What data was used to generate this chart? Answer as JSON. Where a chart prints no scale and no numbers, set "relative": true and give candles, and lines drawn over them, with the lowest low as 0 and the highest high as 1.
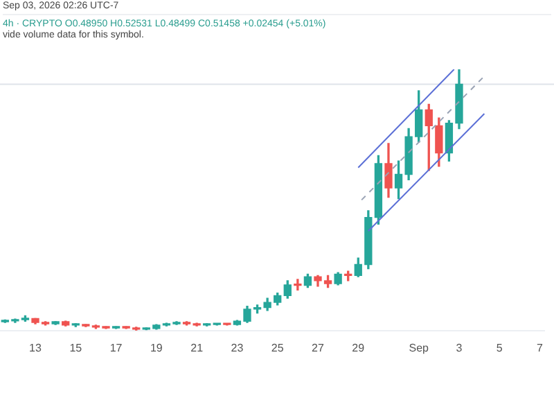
{
  "chart_data": {
    "type": "candlestick",
    "relative": true,
    "grid": false,
    "legend": false,
    "annotations": [
      "Sep 03, 2026 02:26 UTC-7",
      "4h · CRYPTO  O0.48950  H0.52531  L0.48499  C0.51458  +0.02454 (+5.01%)",
      "vide volume data for this symbol."
    ],
    "xlim": [
      "2026-08-11T06:00",
      "2026-09-07T05:00"
    ],
    "xticks": [
      {
        "value": "2026-08-13",
        "label": "13"
      },
      {
        "value": "2026-08-15",
        "label": "15"
      },
      {
        "value": "2026-08-17",
        "label": "17"
      },
      {
        "value": "2026-08-19",
        "label": "19"
      },
      {
        "value": "2026-08-21",
        "label": "21"
      },
      {
        "value": "2026-08-23",
        "label": "23"
      },
      {
        "value": "2026-08-25",
        "label": "25"
      },
      {
        "value": "2026-08-27",
        "label": "27"
      },
      {
        "value": "2026-08-29",
        "label": "29"
      },
      {
        "value": "2026-09-01",
        "label": "Sep"
      },
      {
        "value": "2026-09-03",
        "label": "3"
      },
      {
        "value": "2026-09-05",
        "label": "5"
      },
      {
        "value": "2026-09-07",
        "label": "7"
      }
    ],
    "x": [
      "2026-08-11T12:00",
      "2026-08-12T00:00",
      "2026-08-12T12:00",
      "2026-08-13T00:00",
      "2026-08-13T12:00",
      "2026-08-14T00:00",
      "2026-08-14T12:00",
      "2026-08-15T00:00",
      "2026-08-15T12:00",
      "2026-08-16T00:00",
      "2026-08-16T12:00",
      "2026-08-17T00:00",
      "2026-08-17T12:00",
      "2026-08-18T00:00",
      "2026-08-18T12:00",
      "2026-08-19T00:00",
      "2026-08-19T12:00",
      "2026-08-20T00:00",
      "2026-08-20T12:00",
      "2026-08-21T00:00",
      "2026-08-21T12:00",
      "2026-08-22T00:00",
      "2026-08-22T12:00",
      "2026-08-23T00:00",
      "2026-08-23T12:00",
      "2026-08-24T00:00",
      "2026-08-24T12:00",
      "2026-08-25T00:00",
      "2026-08-25T12:00",
      "2026-08-26T00:00",
      "2026-08-26T12:00",
      "2026-08-27T00:00",
      "2026-08-27T12:00",
      "2026-08-28T00:00",
      "2026-08-28T12:00",
      "2026-08-29T00:00",
      "2026-08-29T12:00",
      "2026-08-30T00:00",
      "2026-08-30T12:00",
      "2026-08-31T00:00",
      "2026-08-31T12:00",
      "2026-09-01T00:00",
      "2026-09-01T12:00",
      "2026-09-02T00:00",
      "2026-09-02T12:00",
      "2026-09-03T00:00"
    ],
    "ohlc": [
      [
        0.034,
        0.041,
        0.031,
        0.037
      ],
      [
        0.037,
        0.044,
        0.031,
        0.042
      ],
      [
        0.042,
        0.057,
        0.036,
        0.046
      ],
      [
        0.046,
        0.046,
        0.026,
        0.031
      ],
      [
        0.031,
        0.034,
        0.021,
        0.026
      ],
      [
        0.026,
        0.034,
        0.023,
        0.034
      ],
      [
        0.034,
        0.036,
        0.018,
        0.021
      ],
      [
        0.021,
        0.026,
        0.015,
        0.022
      ],
      [
        0.021,
        0.023,
        0.015,
        0.018
      ],
      [
        0.018,
        0.021,
        0.008,
        0.013
      ],
      [
        0.013,
        0.015,
        0.008,
        0.01
      ],
      [
        0.01,
        0.015,
        0.008,
        0.013
      ],
      [
        0.013,
        0.015,
        0.008,
        0.01
      ],
      [
        0.01,
        0.013,
        0.0,
        0.005
      ],
      [
        0.005,
        0.01,
        0.003,
        0.008
      ],
      [
        0.008,
        0.023,
        0.005,
        0.021
      ],
      [
        0.021,
        0.028,
        0.018,
        0.026
      ],
      [
        0.026,
        0.034,
        0.023,
        0.031
      ],
      [
        0.031,
        0.034,
        0.021,
        0.026
      ],
      [
        0.026,
        0.028,
        0.018,
        0.021
      ],
      [
        0.021,
        0.026,
        0.018,
        0.023
      ],
      [
        0.023,
        0.026,
        0.021,
        0.024
      ],
      [
        0.024,
        0.027,
        0.021,
        0.023
      ],
      [
        0.023,
        0.039,
        0.021,
        0.036
      ],
      [
        0.036,
        0.093,
        0.031,
        0.082
      ],
      [
        0.082,
        0.098,
        0.067,
        0.088
      ],
      [
        0.088,
        0.124,
        0.077,
        0.108
      ],
      [
        0.108,
        0.144,
        0.098,
        0.134
      ],
      [
        0.134,
        0.191,
        0.124,
        0.175
      ],
      [
        0.175,
        0.196,
        0.155,
        0.173
      ],
      [
        0.173,
        0.216,
        0.165,
        0.206
      ],
      [
        0.206,
        0.211,
        0.17,
        0.191
      ],
      [
        0.191,
        0.211,
        0.165,
        0.18
      ],
      [
        0.18,
        0.222,
        0.175,
        0.216
      ],
      [
        0.216,
        0.227,
        0.191,
        0.211
      ],
      [
        0.211,
        0.278,
        0.206,
        0.253
      ],
      [
        0.253,
        0.459,
        0.237,
        0.433
      ],
      [
        0.433,
        0.67,
        0.407,
        0.639
      ],
      [
        0.639,
        0.716,
        0.51,
        0.546
      ],
      [
        0.546,
        0.649,
        0.505,
        0.598
      ],
      [
        0.598,
        0.773,
        0.577,
        0.742
      ],
      [
        0.742,
        0.918,
        0.722,
        0.845
      ],
      [
        0.845,
        0.866,
        0.613,
        0.784
      ],
      [
        0.784,
        0.814,
        0.629,
        0.68
      ],
      [
        0.68,
        0.804,
        0.649,
        0.794
      ],
      [
        0.794,
        1.0,
        0.773,
        0.943
      ]
    ],
    "colors": [
      "#26a69a",
      "#26a69a",
      "#26a69a",
      "#ef5350",
      "#ef5350",
      "#26a69a",
      "#ef5350",
      "#26a69a",
      "#ef5350",
      "#ef5350",
      "#ef5350",
      "#26a69a",
      "#ef5350",
      "#ef5350",
      "#26a69a",
      "#26a69a",
      "#26a69a",
      "#26a69a",
      "#ef5350",
      "#ef5350",
      "#26a69a",
      "#26a69a",
      "#ef5350",
      "#26a69a",
      "#26a69a",
      "#26a69a",
      "#26a69a",
      "#26a69a",
      "#26a69a",
      "#ef5350",
      "#26a69a",
      "#ef5350",
      "#ef5350",
      "#26a69a",
      "#ef5350",
      "#26a69a",
      "#26a69a",
      "#26a69a",
      "#ef5350",
      "#26a69a",
      "#26a69a",
      "#26a69a",
      "#ef5350",
      "#ef5350",
      "#26a69a",
      "#26a69a"
    ],
    "series": [
      {
        "type": "line",
        "x": [
          "2026-08-29T00:00",
          "2026-09-02T18:00"
        ],
        "values": [
          0.624,
          1.0
        ],
        "color": "#5b6fd6",
        "line_style": "solid"
      },
      {
        "type": "line",
        "x": [
          "2026-08-29T04:00",
          "2026-09-04T06:00"
        ],
        "values": [
          0.5,
          0.974
        ],
        "color": "#9aa3b5",
        "line_style": "dashed"
      },
      {
        "type": "line",
        "x": [
          "2026-08-29T12:00",
          "2026-09-04T06:00"
        ],
        "values": [
          0.381,
          0.83
        ],
        "color": "#5b6fd6",
        "line_style": "solid"
      }
    ],
    "ref_lines": [
      {
        "axis": "y",
        "value": 0.943,
        "color": "#dfe3ea"
      }
    ]
  }
}
